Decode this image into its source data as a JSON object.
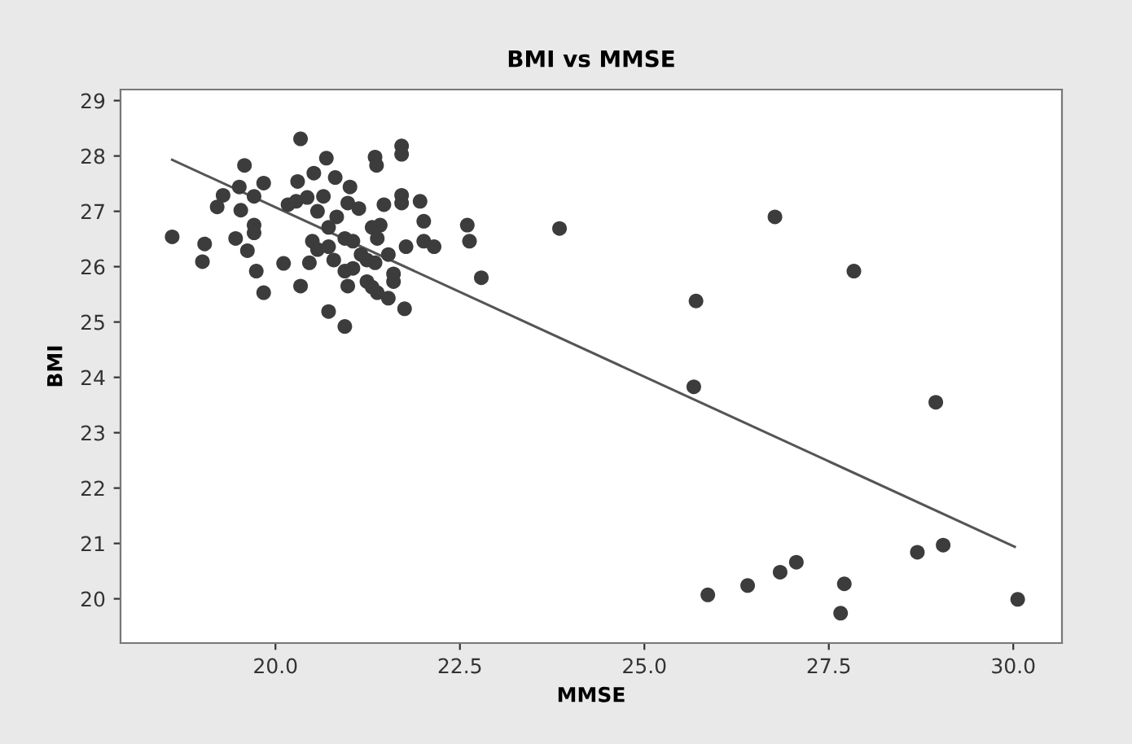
{
  "chart_data": {
    "type": "scatter",
    "title": "BMI vs MMSE",
    "xlabel": "MMSE",
    "ylabel": "BMI",
    "xlim": [
      17.9,
      30.66
    ],
    "ylim": [
      19.2,
      29.2
    ],
    "xticks": [
      {
        "value": 20,
        "label": "20.0"
      },
      {
        "value": 22.5,
        "label": "22.5"
      },
      {
        "value": 25,
        "label": "25.0"
      },
      {
        "value": 27.5,
        "label": "27.5"
      },
      {
        "value": 30,
        "label": "30.0"
      }
    ],
    "yticks": [
      20,
      21,
      22,
      23,
      24,
      25,
      26,
      27,
      28,
      29
    ],
    "grid": false,
    "series": [
      {
        "color": "#3c3c3c",
        "marker": "circle",
        "x": [
          18.6,
          19.04,
          19.01,
          19.58,
          19.51,
          19.29,
          19.21,
          19.53,
          19.71,
          19.84,
          19.71,
          19.71,
          19.46,
          19.62,
          19.74,
          19.84,
          20.11,
          20.34,
          20.34,
          20.3,
          20.52,
          20.69,
          20.81,
          21.01,
          20.17,
          20.28,
          20.43,
          20.65,
          20.57,
          20.72,
          20.5,
          20.57,
          20.46,
          20.72,
          20.94,
          20.79,
          20.94,
          21.05,
          20.98,
          21.13,
          20.94,
          20.98,
          21.16,
          21.24,
          21.35,
          21.37,
          21.71,
          21.71,
          21.47,
          21.42,
          21.31,
          21.38,
          21.53,
          21.35,
          21.6,
          21.6,
          21.38,
          21.53,
          21.75,
          21.71,
          21.71,
          21.96,
          22.01,
          21.77,
          22.01,
          22.15,
          22.6,
          22.63,
          22.79,
          20.72,
          20.83,
          21.05,
          21.24,
          21.31,
          23.85,
          26.77,
          27.84,
          25.7,
          25.67,
          28.95,
          25.86,
          26.4,
          26.84,
          27.06,
          27.71,
          27.66,
          28.7,
          29.05,
          30.06
        ],
        "values": [
          26.54,
          26.41,
          26.09,
          27.83,
          27.44,
          27.29,
          27.08,
          27.02,
          27.27,
          27.51,
          26.75,
          26.61,
          26.51,
          26.29,
          25.92,
          25.53,
          26.06,
          25.65,
          28.31,
          27.54,
          27.69,
          27.96,
          27.61,
          27.44,
          27.12,
          27.18,
          27.25,
          27.27,
          27.0,
          26.71,
          26.46,
          26.31,
          26.07,
          25.19,
          24.92,
          26.12,
          26.51,
          26.46,
          27.15,
          27.05,
          25.92,
          25.65,
          26.22,
          25.73,
          27.98,
          27.83,
          28.18,
          28.03,
          27.12,
          26.75,
          26.71,
          26.51,
          26.22,
          26.07,
          25.87,
          25.73,
          25.53,
          25.43,
          25.24,
          27.29,
          27.15,
          27.18,
          26.82,
          26.36,
          26.46,
          26.36,
          26.75,
          26.46,
          25.8,
          26.36,
          26.9,
          25.97,
          26.12,
          25.63,
          26.69,
          26.9,
          25.92,
          25.38,
          23.83,
          23.55,
          20.07,
          20.24,
          20.48,
          20.66,
          20.27,
          19.74,
          20.84,
          20.97,
          19.99
        ]
      },
      {
        "type": "line",
        "color": "#555555",
        "marker": "none",
        "x": [
          18.6,
          30.02
        ],
        "values": [
          27.93,
          20.94
        ]
      }
    ]
  }
}
